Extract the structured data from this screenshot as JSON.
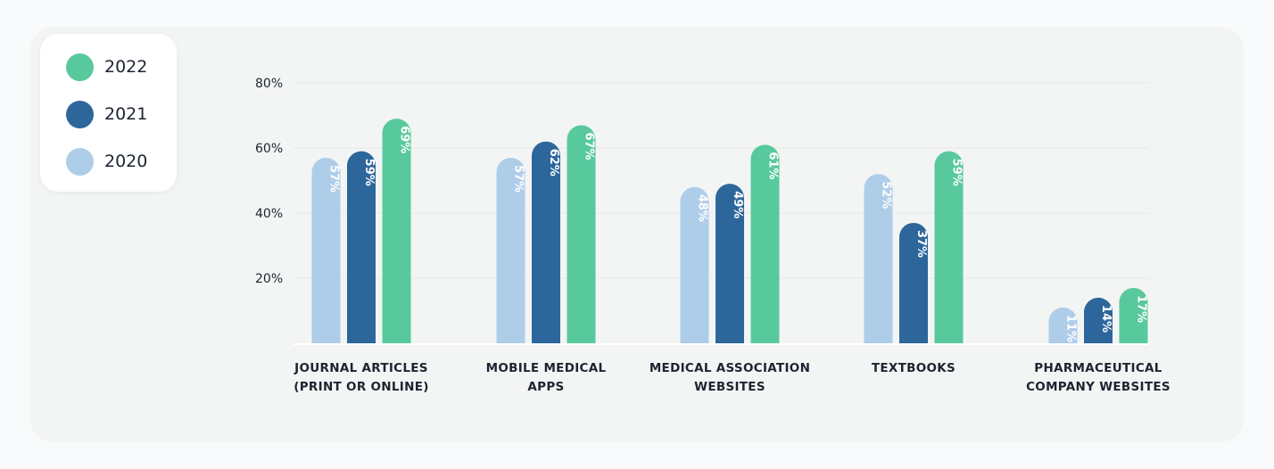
{
  "chart_data": {
    "type": "bar",
    "categories": [
      [
        "JOURNAL ARTICLES",
        "(PRINT OR ONLINE)"
      ],
      [
        "MOBILE MEDICAL",
        "APPS"
      ],
      [
        "MEDICAL ASSOCIATION",
        "WEBSITES"
      ],
      [
        "TEXTBOOKS"
      ],
      [
        "PHARMACEUTICAL",
        "COMPANY WEBSITES"
      ]
    ],
    "series": [
      {
        "name": "2020",
        "color": "#aecde9",
        "values": [
          57,
          57,
          48,
          52,
          11
        ]
      },
      {
        "name": "2021",
        "color": "#2d669b",
        "values": [
          59,
          62,
          49,
          37,
          14
        ]
      },
      {
        "name": "2022",
        "color": "#58c99d",
        "values": [
          69,
          67,
          61,
          59,
          17
        ]
      }
    ],
    "value_labels": [
      [
        "57%",
        "57%",
        "48%",
        "52%",
        "11%"
      ],
      [
        "59%",
        "62%",
        "49%",
        "37%",
        "14%"
      ],
      [
        "69%",
        "67%",
        "61%",
        "59%",
        "17%"
      ]
    ],
    "yticks": [
      "20%",
      "40%",
      "60%",
      "80%"
    ],
    "ytick_values": [
      20,
      40,
      60,
      80
    ],
    "ylim": [
      0,
      80
    ],
    "grid": true,
    "legend_position": "top-left",
    "title": "",
    "xlabel": "",
    "ylabel": ""
  },
  "legend": [
    {
      "label": "2022",
      "color": "#58c99d"
    },
    {
      "label": "2021",
      "color": "#2d669b"
    },
    {
      "label": "2020",
      "color": "#aecde9"
    }
  ]
}
